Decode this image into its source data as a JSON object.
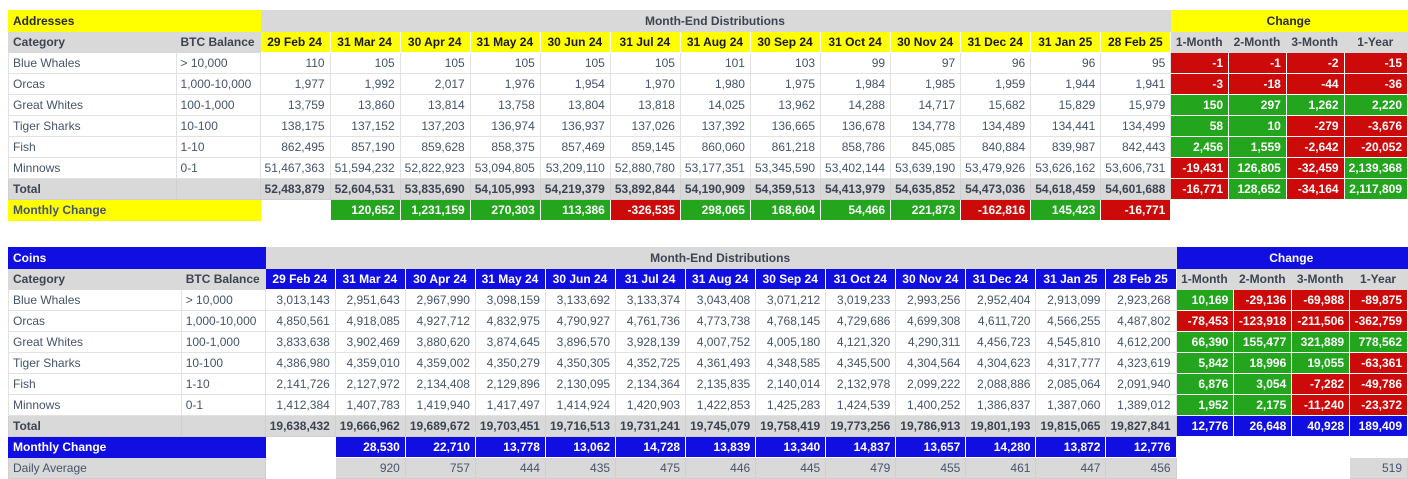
{
  "colors": {
    "yellow_accent": "#ffff00",
    "blue_accent": "#100ee0",
    "positive_green": "#23a51e",
    "negative_red": "#cc0a0a",
    "header_gray": "#d9d9d9",
    "text_navy": "#44546a"
  },
  "chart_data": [
    {
      "type": "table",
      "title": "Addresses",
      "theme": "yellow",
      "section_headers": {
        "distributions": "Month-End Distributions",
        "change": "Change"
      },
      "columns": {
        "category": "Category",
        "balance": "BTC Balance"
      },
      "dates": [
        "29 Feb 24",
        "31 Mar 24",
        "30 Apr 24",
        "31 May 24",
        "30 Jun 24",
        "31 Jul 24",
        "31 Aug 24",
        "30 Sep 24",
        "31 Oct 24",
        "30 Nov 24",
        "31 Dec 24",
        "31 Jan 25",
        "28 Feb 25"
      ],
      "change_columns": [
        "1-Month",
        "2-Month",
        "3-Month",
        "1-Year"
      ],
      "rows": [
        {
          "category": "Blue Whales",
          "balance": "> 10,000",
          "values": [
            "110",
            "105",
            "105",
            "105",
            "105",
            "105",
            "101",
            "103",
            "99",
            "97",
            "96",
            "96",
            "95"
          ],
          "changes": [
            "-1",
            "-1",
            "-2",
            "-15"
          ]
        },
        {
          "category": "Orcas",
          "balance": "1,000-10,000",
          "values": [
            "1,977",
            "1,992",
            "2,017",
            "1,976",
            "1,954",
            "1,970",
            "1,980",
            "1,975",
            "1,984",
            "1,985",
            "1,959",
            "1,944",
            "1,941"
          ],
          "changes": [
            "-3",
            "-18",
            "-44",
            "-36"
          ]
        },
        {
          "category": "Great Whites",
          "balance": "100-1,000",
          "values": [
            "13,759",
            "13,860",
            "13,814",
            "13,758",
            "13,804",
            "13,818",
            "14,025",
            "13,962",
            "14,288",
            "14,717",
            "15,682",
            "15,829",
            "15,979"
          ],
          "changes": [
            "150",
            "297",
            "1,262",
            "2,220"
          ]
        },
        {
          "category": "Tiger Sharks",
          "balance": "10-100",
          "values": [
            "138,175",
            "137,152",
            "137,203",
            "136,974",
            "136,937",
            "137,026",
            "137,392",
            "136,665",
            "136,678",
            "134,778",
            "134,489",
            "134,441",
            "134,499"
          ],
          "changes": [
            "58",
            "10",
            "-279",
            "-3,676"
          ]
        },
        {
          "category": "Fish",
          "balance": "1-10",
          "values": [
            "862,495",
            "857,190",
            "859,628",
            "858,375",
            "857,469",
            "859,145",
            "860,060",
            "861,218",
            "858,786",
            "845,085",
            "840,884",
            "839,987",
            "842,443"
          ],
          "changes": [
            "2,456",
            "1,559",
            "-2,642",
            "-20,052"
          ]
        },
        {
          "category": "Minnows",
          "balance": "0-1",
          "values": [
            "51,467,363",
            "51,594,232",
            "52,822,923",
            "53,094,805",
            "53,209,110",
            "52,880,780",
            "53,177,351",
            "53,345,590",
            "53,402,144",
            "53,639,190",
            "53,479,926",
            "53,626,162",
            "53,606,731"
          ],
          "changes": [
            "-19,431",
            "126,805",
            "-32,459",
            "2,139,368"
          ]
        }
      ],
      "total_row": {
        "label": "Total",
        "values": [
          "52,483,879",
          "52,604,531",
          "53,835,690",
          "54,105,993",
          "54,219,379",
          "53,892,844",
          "54,190,909",
          "54,359,513",
          "54,413,979",
          "54,635,852",
          "54,473,036",
          "54,618,459",
          "54,601,688"
        ],
        "changes": [
          "-16,771",
          "128,652",
          "-34,164",
          "2,117,809"
        ],
        "change_style": "signed"
      },
      "monthly_change_row": {
        "label": "Monthly Change",
        "style": "signed",
        "values": [
          "120,652",
          "1,231,159",
          "270,303",
          "113,386",
          "-326,535",
          "298,065",
          "168,604",
          "54,466",
          "221,873",
          "-162,816",
          "145,423",
          "-16,771"
        ]
      }
    },
    {
      "type": "table",
      "title": "Coins",
      "theme": "blue",
      "section_headers": {
        "distributions": "Month-End Distributions",
        "change": "Change"
      },
      "columns": {
        "category": "Category",
        "balance": "BTC Balance"
      },
      "dates": [
        "29 Feb 24",
        "31 Mar 24",
        "30 Apr 24",
        "31 May 24",
        "30 Jun 24",
        "31 Jul 24",
        "31 Aug 24",
        "30 Sep 24",
        "31 Oct 24",
        "30 Nov 24",
        "31 Dec 24",
        "31 Jan 25",
        "28 Feb 25"
      ],
      "change_columns": [
        "1-Month",
        "2-Month",
        "3-Month",
        "1-Year"
      ],
      "rows": [
        {
          "category": "Blue Whales",
          "balance": "> 10,000",
          "values": [
            "3,013,143",
            "2,951,643",
            "2,967,990",
            "3,098,159",
            "3,133,692",
            "3,133,374",
            "3,043,408",
            "3,071,212",
            "3,019,233",
            "2,993,256",
            "2,952,404",
            "2,913,099",
            "2,923,268"
          ],
          "changes": [
            "10,169",
            "-29,136",
            "-69,988",
            "-89,875"
          ]
        },
        {
          "category": "Orcas",
          "balance": "1,000-10,000",
          "values": [
            "4,850,561",
            "4,918,085",
            "4,927,712",
            "4,832,975",
            "4,790,927",
            "4,761,736",
            "4,773,738",
            "4,768,145",
            "4,729,686",
            "4,699,308",
            "4,611,720",
            "4,566,255",
            "4,487,802"
          ],
          "changes": [
            "-78,453",
            "-123,918",
            "-211,506",
            "-362,759"
          ]
        },
        {
          "category": "Great Whites",
          "balance": "100-1,000",
          "values": [
            "3,833,638",
            "3,902,469",
            "3,880,620",
            "3,874,645",
            "3,896,570",
            "3,928,139",
            "4,007,752",
            "4,005,180",
            "4,121,320",
            "4,290,311",
            "4,456,723",
            "4,545,810",
            "4,612,200"
          ],
          "changes": [
            "66,390",
            "155,477",
            "321,889",
            "778,562"
          ]
        },
        {
          "category": "Tiger Sharks",
          "balance": "10-100",
          "values": [
            "4,386,980",
            "4,359,010",
            "4,359,002",
            "4,350,279",
            "4,350,305",
            "4,352,725",
            "4,361,493",
            "4,348,585",
            "4,345,500",
            "4,304,564",
            "4,304,623",
            "4,317,777",
            "4,323,619"
          ],
          "changes": [
            "5,842",
            "18,996",
            "19,055",
            "-63,361"
          ]
        },
        {
          "category": "Fish",
          "balance": "1-10",
          "values": [
            "2,141,726",
            "2,127,972",
            "2,134,408",
            "2,129,896",
            "2,130,095",
            "2,134,364",
            "2,135,835",
            "2,140,014",
            "2,132,978",
            "2,099,222",
            "2,088,886",
            "2,085,064",
            "2,091,940"
          ],
          "changes": [
            "6,876",
            "3,054",
            "-7,282",
            "-49,786"
          ]
        },
        {
          "category": "Minnows",
          "balance": "0-1",
          "values": [
            "1,412,384",
            "1,407,783",
            "1,419,940",
            "1,417,497",
            "1,414,924",
            "1,420,903",
            "1,422,853",
            "1,425,283",
            "1,424,539",
            "1,400,252",
            "1,386,837",
            "1,387,060",
            "1,389,012"
          ],
          "changes": [
            "1,952",
            "2,175",
            "-11,240",
            "-23,372"
          ]
        }
      ],
      "total_row": {
        "label": "Total",
        "values": [
          "19,638,432",
          "19,666,962",
          "19,689,672",
          "19,703,451",
          "19,716,513",
          "19,731,241",
          "19,745,079",
          "19,758,419",
          "19,773,256",
          "19,786,913",
          "19,801,193",
          "19,815,065",
          "19,827,841"
        ],
        "changes": [
          "12,776",
          "26,648",
          "40,928",
          "189,409"
        ],
        "change_style": "accent"
      },
      "monthly_change_row": {
        "label": "Monthly Change",
        "style": "accent",
        "values": [
          "28,530",
          "22,710",
          "13,778",
          "13,062",
          "14,728",
          "13,839",
          "13,340",
          "14,837",
          "13,657",
          "14,280",
          "13,872",
          "12,776"
        ]
      },
      "daily_average_row": {
        "label": "Daily Average",
        "values": [
          "920",
          "757",
          "444",
          "435",
          "475",
          "446",
          "445",
          "479",
          "455",
          "461",
          "447",
          "456"
        ],
        "one_year_value": "519"
      }
    }
  ]
}
